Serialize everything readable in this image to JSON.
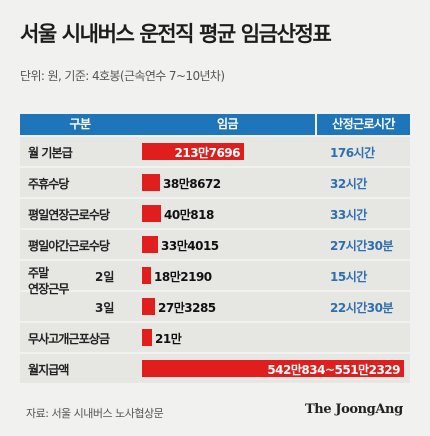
{
  "title": "서울 시내버스 운전직 평균 임금산정표",
  "subtitle": "단위: 원, 기준: 4호봉(근속연수 7~10년차)",
  "header": {
    "category": "구분",
    "wage": "임금",
    "hours": "산정근로시간"
  },
  "source": "자료: 서울 시내버스 노사협상문",
  "logo": "The JoongAng",
  "colors": {
    "bar": "#e01e1e",
    "header": "#1e75b9",
    "hours_text": "#2f6fb0",
    "row_bg": "#e6e6e3"
  },
  "chart_data": {
    "type": "bar",
    "orientation": "horizontal",
    "unit": "원",
    "rows": [
      {
        "label": "월 기본급",
        "value": 2137696,
        "value_label": "213만7696",
        "hours": "176시간"
      },
      {
        "label": "주휴수당",
        "value": 388672,
        "value_label": "38만8672",
        "hours": "32시간"
      },
      {
        "label": "평일연장근로수당",
        "value": 400818,
        "value_label": "40만818",
        "hours": "33시간"
      },
      {
        "label": "평일야간근로수당",
        "value": 334015,
        "value_label": "33만4015",
        "hours": "27시간30분"
      },
      {
        "group": "주말 연장근무",
        "label": "2일",
        "value": 182190,
        "value_label": "18만2190",
        "hours": "15시간"
      },
      {
        "group": "주말 연장근무",
        "label": "3일",
        "value": 273285,
        "value_label": "27만3285",
        "hours": "22시간30분"
      },
      {
        "label": "무사고개근포상금",
        "value": 210000,
        "value_label": "21만",
        "hours": ""
      },
      {
        "label": "월지급액",
        "value": 5423114,
        "value_label": "542만834~551만2329",
        "hours": ""
      }
    ],
    "group_label": [
      "주말",
      "연장근무"
    ]
  }
}
